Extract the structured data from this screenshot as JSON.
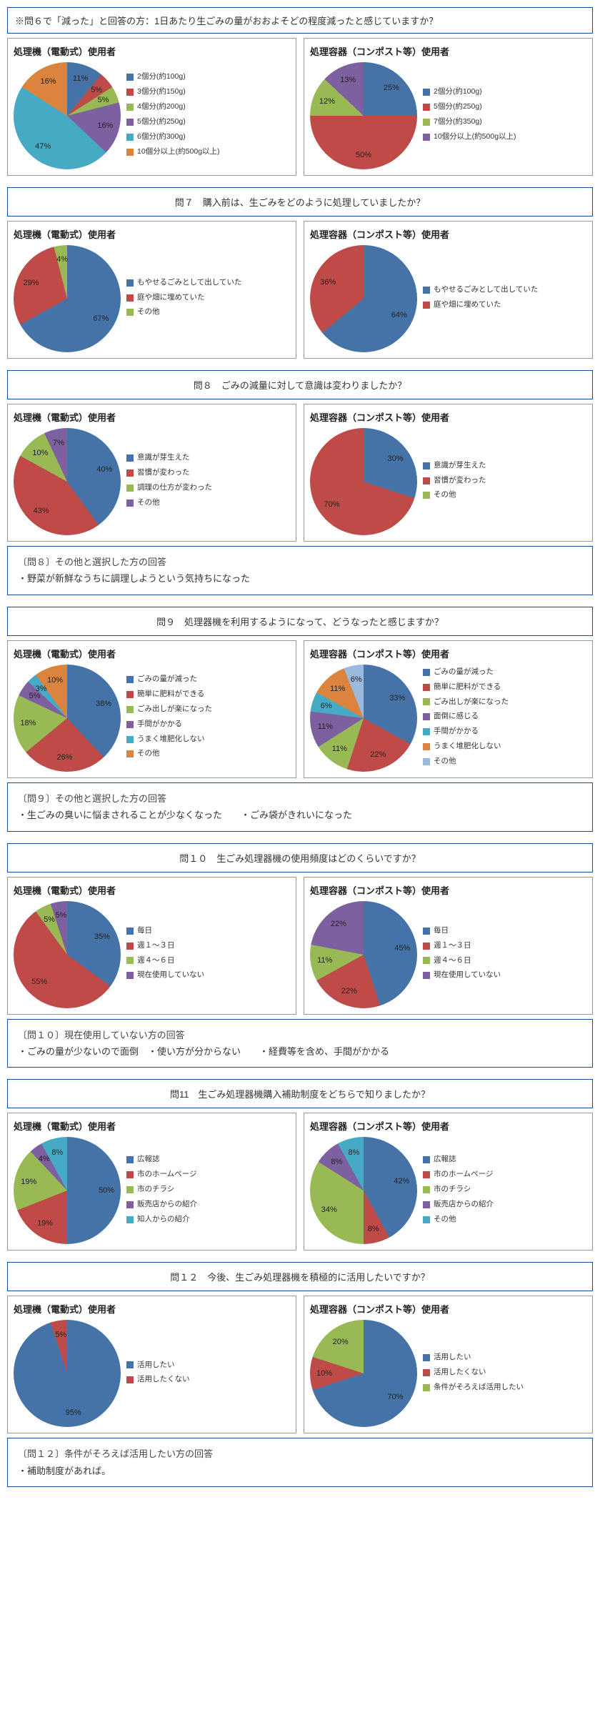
{
  "topNote": "※問６で「減った」と回答の方：1日あたり生ごみの量がおおよそどの程度減ったと感じていますか？",
  "titles": {
    "electric": "処理機（電動式）使用者",
    "compost": "処理容器（コンポスト等）使用者"
  },
  "colors": [
    "#4573a7",
    "#be4b48",
    "#98b954",
    "#7d60a0",
    "#46aac5",
    "#db843d",
    "#9bbadc",
    "#c99897"
  ],
  "sections": [
    {
      "id": "q6",
      "row": {
        "left": {
          "data": [
            {
              "label": "2個分(約100g)",
              "v": 11
            },
            {
              "label": "3個分(約150g)",
              "v": 5
            },
            {
              "label": "4個分(約200g)",
              "v": 5
            },
            {
              "label": "5個分(約250g)",
              "v": 16
            },
            {
              "label": "6個分(約300g)",
              "v": 47
            },
            {
              "label": "10個分以上(約500g以上)",
              "v": 16
            }
          ]
        },
        "right": {
          "data": [
            {
              "label": "2個分(約100g)",
              "v": 25
            },
            {
              "label": "5個分(約250g)",
              "v": 50
            },
            {
              "label": "7個分(約350g)",
              "v": 12
            },
            {
              "label": "10個分以上(約500g以上)",
              "v": 13
            }
          ]
        }
      }
    },
    {
      "id": "q7",
      "question": "問７　購入前は、生ごみをどのように処理していましたか？",
      "row": {
        "left": {
          "data": [
            {
              "label": "もやせるごみとして出していた",
              "v": 67
            },
            {
              "label": "庭や畑に埋めていた",
              "v": 29
            },
            {
              "label": "その他",
              "v": 4
            }
          ]
        },
        "right": {
          "data": [
            {
              "label": "もやせるごみとして出していた",
              "v": 64
            },
            {
              "label": "庭や畑に埋めていた",
              "v": 36
            }
          ]
        }
      }
    },
    {
      "id": "q8",
      "question": "問８　ごみの減量に対して意識は変わりましたか？",
      "row": {
        "left": {
          "data": [
            {
              "label": "意識が芽生えた",
              "v": 40
            },
            {
              "label": "習慣が変わった",
              "v": 43
            },
            {
              "label": "調理の仕方が変わった",
              "v": 10
            },
            {
              "label": "その他",
              "v": 7
            }
          ]
        },
        "right": {
          "data": [
            {
              "label": "意識が芽生えた",
              "v": 30
            },
            {
              "label": "習慣が変わった",
              "v": 70
            },
            {
              "label": "その他",
              "v": 0
            }
          ]
        }
      },
      "note": {
        "title": "〔問８〕その他と選択した方の回答",
        "body": "・野菜が新鮮なうちに調理しようという気持ちになった"
      }
    },
    {
      "id": "q9",
      "question": "問９　処理器機を利用するようになって、どうなったと感じますか？",
      "row": {
        "left": {
          "data": [
            {
              "label": "ごみの量が減った",
              "v": 38
            },
            {
              "label": "簡単に肥料ができる",
              "v": 26
            },
            {
              "label": "ごみ出しが楽になった",
              "v": 18
            },
            {
              "label": "手間がかかる",
              "v": 5
            },
            {
              "label": "うまく堆肥化しない",
              "v": 3
            },
            {
              "label": "その他",
              "v": 10
            }
          ]
        },
        "right": {
          "data": [
            {
              "label": "ごみの量が減った",
              "v": 33
            },
            {
              "label": "簡単に肥料ができる",
              "v": 22
            },
            {
              "label": "ごみ出しが楽になった",
              "v": 11
            },
            {
              "label": "面倒に感じる",
              "v": 11
            },
            {
              "label": "手間がかかる",
              "v": 6
            },
            {
              "label": "うまく堆肥化しない",
              "v": 11
            },
            {
              "label": "その他",
              "v": 6
            }
          ]
        }
      },
      "note": {
        "title": "〔問９〕その他と選択した方の回答",
        "body": "・生ごみの臭いに悩まされることが少なくなった　　・ごみ袋がきれいになった"
      }
    },
    {
      "id": "q10",
      "question": "問１０　生ごみ処理器機の使用頻度はどのくらいですか？",
      "row": {
        "left": {
          "data": [
            {
              "label": "毎日",
              "v": 35
            },
            {
              "label": "週１～３日",
              "v": 55
            },
            {
              "label": "週４～６日",
              "v": 5
            },
            {
              "label": "現在使用していない",
              "v": 5
            }
          ]
        },
        "right": {
          "data": [
            {
              "label": "毎日",
              "v": 45
            },
            {
              "label": "週１～３日",
              "v": 22
            },
            {
              "label": "週４～６日",
              "v": 11
            },
            {
              "label": "現在使用していない",
              "v": 22
            }
          ]
        }
      },
      "note": {
        "title": "〔問１０〕現在使用していない方の回答",
        "body": "・ごみの量が少ないので面倒　・使い方が分からない　　・経費等を含め、手間がかかる"
      }
    },
    {
      "id": "q11",
      "question": "問11　生ごみ処理器機購入補助制度をどちらで知りましたか？",
      "row": {
        "left": {
          "data": [
            {
              "label": "広報誌",
              "v": 50
            },
            {
              "label": "市のホームページ",
              "v": 19
            },
            {
              "label": "市のチラシ",
              "v": 19
            },
            {
              "label": "販売店からの紹介",
              "v": 4
            },
            {
              "label": "知人からの紹介",
              "v": 8
            }
          ]
        },
        "right": {
          "data": [
            {
              "label": "広報誌",
              "v": 42
            },
            {
              "label": "市のホームページ",
              "v": 8
            },
            {
              "label": "市のチラシ",
              "v": 34
            },
            {
              "label": "販売店からの紹介",
              "v": 8
            },
            {
              "label": "その他",
              "v": 8
            }
          ]
        }
      }
    },
    {
      "id": "q12",
      "question": "問１２　今後、生ごみ処理器機を積極的に活用したいですか？",
      "row": {
        "left": {
          "data": [
            {
              "label": "活用したい",
              "v": 95
            },
            {
              "label": "活用したくない",
              "v": 5
            }
          ]
        },
        "right": {
          "data": [
            {
              "label": "活用したい",
              "v": 70
            },
            {
              "label": "活用したくない",
              "v": 10
            },
            {
              "label": "条件がそろえば活用したい",
              "v": 20
            }
          ]
        }
      },
      "note": {
        "title": "〔問１２〕条件がそろえば活用したい方の回答",
        "body": "・補助制度があれば。"
      }
    }
  ]
}
